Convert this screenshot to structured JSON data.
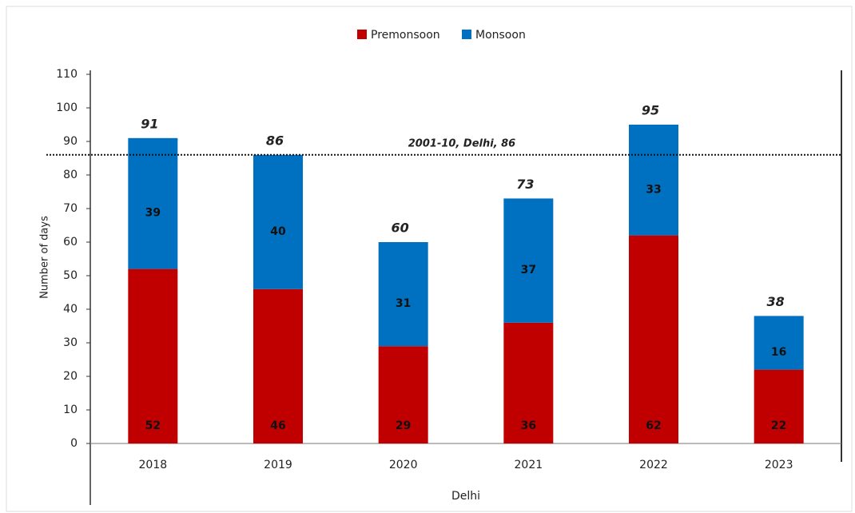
{
  "chart_data": {
    "type": "stacked_bar",
    "categories": [
      "2018",
      "2019",
      "2020",
      "2021",
      "2022",
      "2023"
    ],
    "series": [
      {
        "name": "Premonsoon",
        "color": "#c00000",
        "values": [
          52,
          46,
          29,
          36,
          62,
          22
        ]
      },
      {
        "name": "Monsoon",
        "color": "#0070c0",
        "values": [
          39,
          40,
          31,
          37,
          33,
          16
        ]
      }
    ],
    "totals": [
      91,
      86,
      60,
      73,
      95,
      38
    ],
    "reference_line": {
      "value": 86,
      "label": "2001-10, Delhi, 86"
    },
    "xlabel": "Delhi",
    "ylabel": "Number of days",
    "ylim": [
      0,
      110
    ],
    "yticks": [
      0,
      10,
      20,
      30,
      40,
      50,
      60,
      70,
      80,
      90,
      100,
      110
    ],
    "legend": "top"
  }
}
